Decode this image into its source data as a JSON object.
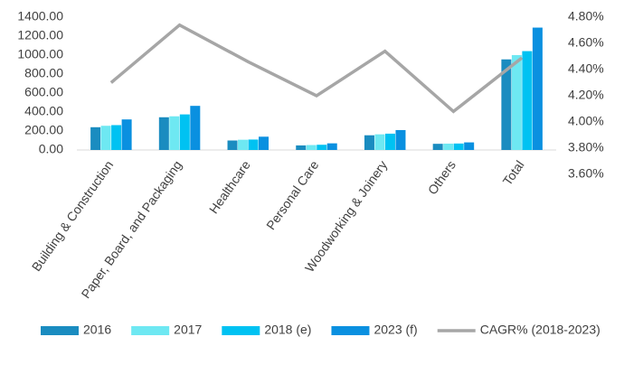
{
  "chart_data": {
    "type": "bar-line",
    "categories": [
      "Building & Construction",
      "Paper, Board, and Packaging",
      "Healthcare",
      "Personal Care",
      "Woodworking & Joinery",
      "Others",
      "Total"
    ],
    "series": [
      {
        "name": "2016",
        "color": "#1a8cc0",
        "type": "bar",
        "values": [
          240,
          345,
          100,
          48,
          155,
          65,
          955
        ]
      },
      {
        "name": "2017",
        "color": "#6ee8f2",
        "type": "bar",
        "values": [
          255,
          355,
          108,
          52,
          165,
          67,
          1000
        ]
      },
      {
        "name": "2018 (e)",
        "color": "#00c2f2",
        "type": "bar",
        "values": [
          262,
          375,
          110,
          55,
          172,
          68,
          1042
        ]
      },
      {
        "name": "2023 (f)",
        "color": "#0a90e0",
        "type": "bar",
        "values": [
          322,
          465,
          140,
          70,
          210,
          80,
          1290
        ]
      },
      {
        "name": "CAGR% (2018-2023)",
        "color": "#a6a6a6",
        "type": "line",
        "axis": "y2",
        "values": [
          4.3,
          4.74,
          4.46,
          4.2,
          4.54,
          4.08,
          4.49
        ]
      }
    ],
    "ylim": [
      0,
      1400
    ],
    "yticks": [
      {
        "value": 0,
        "label": "0.00"
      },
      {
        "value": 200,
        "label": "200.00"
      },
      {
        "value": 400,
        "label": "400.00"
      },
      {
        "value": 600,
        "label": "600.00"
      },
      {
        "value": 800,
        "label": "800.00"
      },
      {
        "value": 1000,
        "label": "1000.00"
      },
      {
        "value": 1200,
        "label": "1200.00"
      },
      {
        "value": 1400,
        "label": "1400.00"
      }
    ],
    "y2lim": [
      3.6,
      4.8
    ],
    "y2ticks": [
      {
        "value": 3.6,
        "label": "3.60%"
      },
      {
        "value": 3.8,
        "label": "3.80%"
      },
      {
        "value": 4.0,
        "label": "4.00%"
      },
      {
        "value": 4.2,
        "label": "4.20%"
      },
      {
        "value": 4.4,
        "label": "4.40%"
      },
      {
        "value": 4.6,
        "label": "4.60%"
      },
      {
        "value": 4.8,
        "label": "4.80%"
      }
    ],
    "legend": "bottom"
  }
}
